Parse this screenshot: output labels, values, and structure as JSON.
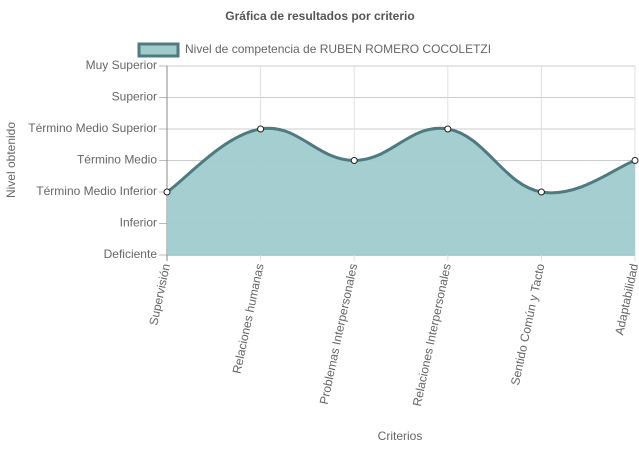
{
  "chart_data": {
    "type": "area",
    "title": "Gráfica de resultados por criterio",
    "x_label": "Criterios",
    "y_label": "Nivel obtenido",
    "categories": [
      "Supervisión",
      "Relaciones humanas",
      "Problemas Interpersonales",
      "Relaciones Interpersonales",
      "Sentido Común y Tacto",
      "Adaptabilidad"
    ],
    "series": [
      {
        "name": "Nivel de competencia de RUBEN ROMERO COCOLETZI",
        "color": "#4f7a80",
        "fill": "#a0cbcd",
        "values": [
          2,
          4,
          3,
          4,
          2,
          3
        ]
      }
    ],
    "ylim": [
      0,
      6
    ],
    "yticks": [
      {
        "value": 0,
        "label": "Deficiente"
      },
      {
        "value": 1,
        "label": "Inferior"
      },
      {
        "value": 2,
        "label": "Término Medio Inferior"
      },
      {
        "value": 3,
        "label": "Término Medio"
      },
      {
        "value": 4,
        "label": "Término Medio Superior"
      },
      {
        "value": 5,
        "label": "Superior"
      },
      {
        "value": 6,
        "label": "Muy Superior"
      }
    ],
    "grid": true,
    "legend": "top"
  }
}
